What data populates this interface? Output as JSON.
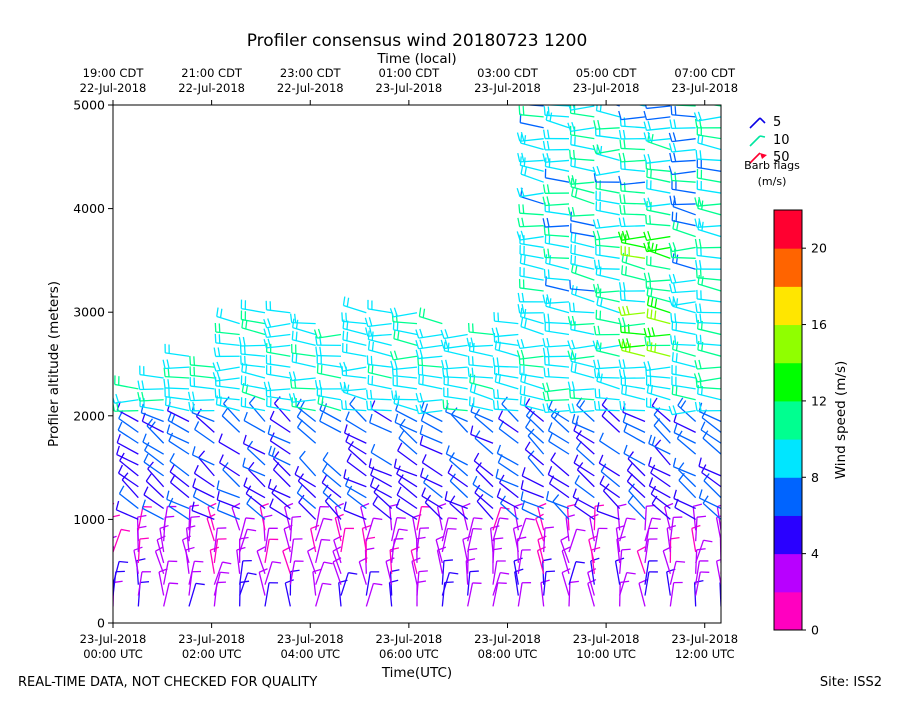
{
  "chart_data": {
    "type": "scatter",
    "title": "Profiler consensus wind 20180723 1200",
    "top_axis_label": "Time (local)",
    "xlabel": "Time(UTC)",
    "ylabel": "Profiler altitude (meters)",
    "ylim": [
      0,
      5000
    ],
    "xlim_hours_utc": [
      0,
      12.33
    ],
    "y_ticks": [
      "0",
      "1000",
      "2000",
      "3000",
      "4000",
      "5000"
    ],
    "bottom_ticks": [
      {
        "hour": 0,
        "date": "23-Jul-2018",
        "time": "00:00 UTC"
      },
      {
        "hour": 2,
        "date": "23-Jul-2018",
        "time": "02:00 UTC"
      },
      {
        "hour": 4,
        "date": "23-Jul-2018",
        "time": "04:00 UTC"
      },
      {
        "hour": 6,
        "date": "23-Jul-2018",
        "time": "06:00 UTC"
      },
      {
        "hour": 8,
        "date": "23-Jul-2018",
        "time": "08:00 UTC"
      },
      {
        "hour": 10,
        "date": "23-Jul-2018",
        "time": "10:00 UTC"
      },
      {
        "hour": 12,
        "date": "23-Jul-2018",
        "time": "12:00 UTC"
      }
    ],
    "top_ticks": [
      {
        "hour": 0,
        "time": "19:00 CDT",
        "date": "22-Jul-2018"
      },
      {
        "hour": 2,
        "time": "21:00 CDT",
        "date": "22-Jul-2018"
      },
      {
        "hour": 4,
        "time": "23:00 CDT",
        "date": "22-Jul-2018"
      },
      {
        "hour": 6,
        "time": "01:00 CDT",
        "date": "23-Jul-2018"
      },
      {
        "hour": 8,
        "time": "03:00 CDT",
        "date": "23-Jul-2018"
      },
      {
        "hour": 10,
        "time": "05:00 CDT",
        "date": "23-Jul-2018"
      },
      {
        "hour": 12,
        "time": "07:00 CDT",
        "date": "23-Jul-2018"
      }
    ],
    "barb_legend": {
      "title_line1": "Barb flags",
      "title_line2": "(m/s)",
      "items": [
        {
          "label": "5",
          "color": "#0a00e6"
        },
        {
          "label": "10",
          "color": "#00e6a0"
        },
        {
          "label": "50",
          "color": "#ff0030"
        }
      ]
    },
    "colorbar": {
      "label": "Wind speed (m/s)",
      "range": [
        0,
        22
      ],
      "tick_labels": [
        "0",
        "4",
        "8",
        "12",
        "16",
        "20"
      ],
      "tick_values": [
        0,
        4,
        8,
        12,
        16,
        20
      ],
      "bins": [
        {
          "from": 0,
          "to": 2,
          "color": "#ff00c0"
        },
        {
          "from": 2,
          "to": 4,
          "color": "#b800ff"
        },
        {
          "from": 4,
          "to": 6,
          "color": "#2a00ff"
        },
        {
          "from": 6,
          "to": 8,
          "color": "#0064ff"
        },
        {
          "from": 8,
          "to": 10,
          "color": "#00e6ff"
        },
        {
          "from": 10,
          "to": 12,
          "color": "#00ff90"
        },
        {
          "from": 12,
          "to": 14,
          "color": "#00ff00"
        },
        {
          "from": 14,
          "to": 16,
          "color": "#90ff00"
        },
        {
          "from": 16,
          "to": 18,
          "color": "#ffe600"
        },
        {
          "from": 18,
          "to": 20,
          "color": "#ff6400"
        },
        {
          "from": 20,
          "to": 22,
          "color": "#ff0030"
        }
      ]
    },
    "wind_profiles_description_colors": {
      "low_level": "#c000ff",
      "mid_level": "#2a00ff",
      "upper_level": "#00e6ff"
    }
  },
  "footer": {
    "left": "REAL-TIME DATA, NOT CHECKED FOR QUALITY",
    "right": "Site: ISS2"
  }
}
